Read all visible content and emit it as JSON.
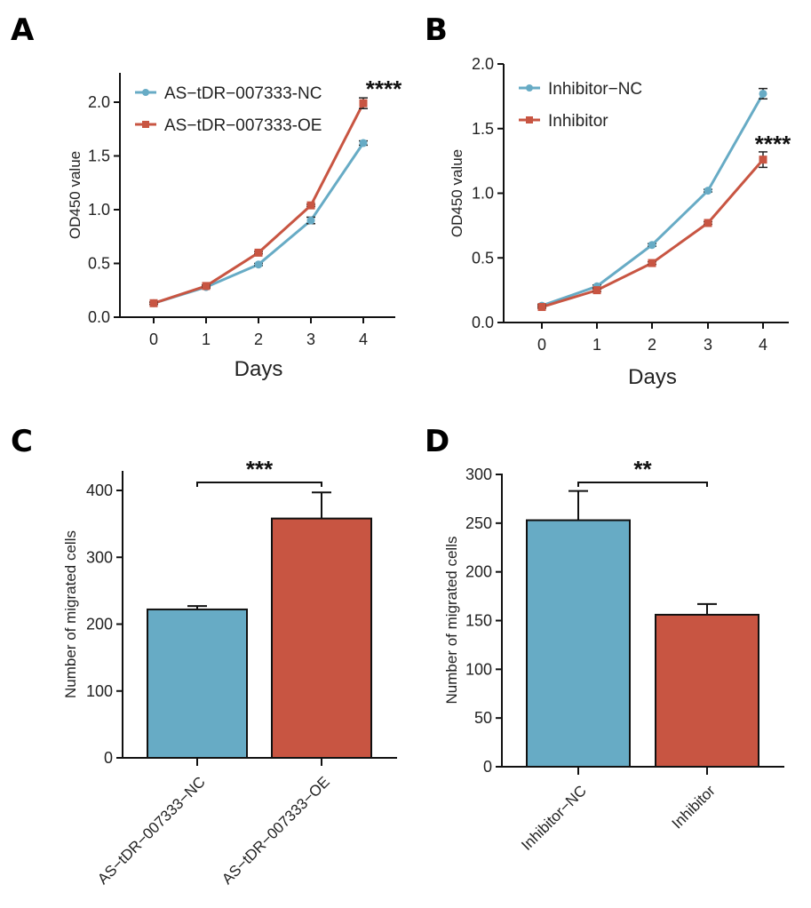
{
  "colors": {
    "blue": "#67abc5",
    "red": "#c85542",
    "axis": "#111111"
  },
  "chart_data": [
    {
      "panel": "A",
      "type": "line",
      "xlabel": "Days",
      "ylabel": "OD450 value",
      "x": [
        0,
        1,
        2,
        3,
        4
      ],
      "xticks": [
        "0",
        "1",
        "2",
        "3",
        "4"
      ],
      "yticks": [
        "0.0",
        "0.5",
        "1.0",
        "1.5",
        "2.0"
      ],
      "ylim": [
        0,
        2.25
      ],
      "series": [
        {
          "name": "AS−tDR−007333-NC",
          "color": "#67abc5",
          "marker": "circle",
          "values": [
            0.13,
            0.28,
            0.49,
            0.9,
            1.62
          ],
          "errors": [
            0.01,
            0.01,
            0.01,
            0.03,
            0.02
          ]
        },
        {
          "name": "AS−tDR−007333-OE",
          "color": "#c85542",
          "marker": "square",
          "values": [
            0.13,
            0.29,
            0.6,
            1.04,
            1.99
          ],
          "errors": [
            0.01,
            0.01,
            0.01,
            0.01,
            0.05
          ]
        }
      ],
      "annotation": "****",
      "legend": "top-left"
    },
    {
      "panel": "B",
      "type": "line",
      "xlabel": "Days",
      "ylabel": "OD450 value",
      "x": [
        0,
        1,
        2,
        3,
        4
      ],
      "xticks": [
        "0",
        "1",
        "2",
        "3",
        "4"
      ],
      "yticks": [
        "0.0",
        "0.5",
        "1.0",
        "1.5",
        "2.0"
      ],
      "ylim": [
        0,
        2.0
      ],
      "series": [
        {
          "name": "Inhibitor−NC",
          "color": "#67abc5",
          "marker": "circle",
          "values": [
            0.13,
            0.28,
            0.6,
            1.02,
            1.77
          ],
          "errors": [
            0.01,
            0.01,
            0.01,
            0.01,
            0.04
          ]
        },
        {
          "name": "Inhibitor",
          "color": "#c85542",
          "marker": "square",
          "values": [
            0.12,
            0.25,
            0.46,
            0.77,
            1.26
          ],
          "errors": [
            0.01,
            0.01,
            0.01,
            0.01,
            0.06
          ]
        }
      ],
      "annotation": "****",
      "legend": "top-left"
    },
    {
      "panel": "C",
      "type": "bar",
      "ylabel": "Number of migrated cells",
      "categories": [
        "AS−tDR−007333−NC",
        "AS−tDR−007333−OE"
      ],
      "values": [
        222,
        358
      ],
      "errors": [
        5,
        39
      ],
      "colors": [
        "#67abc5",
        "#c85542"
      ],
      "yticks": [
        "0",
        "100",
        "200",
        "300",
        "400"
      ],
      "ylim": [
        0,
        430
      ],
      "annotation": "***"
    },
    {
      "panel": "D",
      "type": "bar",
      "ylabel": "Number of migrated cells",
      "categories": [
        "Inhibitor−NC",
        "Inhibitor"
      ],
      "values": [
        253,
        156
      ],
      "errors": [
        30,
        11
      ],
      "colors": [
        "#67abc5",
        "#c85542"
      ],
      "yticks": [
        "0",
        "50",
        "100",
        "150",
        "200",
        "250",
        "300"
      ],
      "ylim": [
        0,
        305
      ],
      "annotation": "**"
    }
  ]
}
